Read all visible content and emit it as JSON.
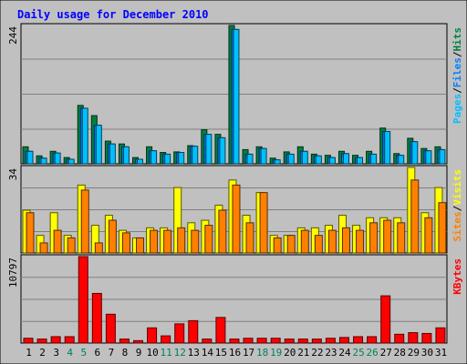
{
  "chart_data": {
    "type": "bar",
    "title": "Daily usage for December 2010",
    "categories": [
      "1",
      "2",
      "3",
      "4",
      "5",
      "6",
      "7",
      "8",
      "9",
      "10",
      "11",
      "12",
      "13",
      "14",
      "15",
      "16",
      "17",
      "18",
      "19",
      "20",
      "21",
      "22",
      "23",
      "24",
      "25",
      "26",
      "27",
      "28",
      "29",
      "30",
      "31"
    ],
    "weekend_days": [
      "4",
      "5",
      "11",
      "12",
      "18",
      "19",
      "25",
      "26"
    ],
    "panels": [
      {
        "ymax_label": "244",
        "ymax": 244,
        "right_label": [
          "Pages",
          "/",
          "Files",
          "/",
          "Hits"
        ],
        "right_label_colors": [
          "#00c0ff",
          "#000000",
          "#0080ff",
          "#000000",
          "#008040"
        ],
        "series": [
          {
            "name": "Hits",
            "color": "#008040",
            "values": [
              30,
              14,
              22,
              11,
              103,
              85,
              40,
              35,
              11,
              30,
              20,
              21,
              32,
              60,
              52,
              244,
              25,
              30,
              10,
              21,
              30,
              17,
              15,
              22,
              15,
              22,
              63,
              18,
              45,
              27,
              30
            ]
          },
          {
            "name": "Files",
            "color": "#0080ff",
            "values": [
              22,
              10,
              19,
              8,
              98,
              68,
              35,
              30,
              8,
              23,
              17,
              20,
              31,
              52,
              46,
              237,
              17,
              27,
              7,
              17,
              22,
              14,
              11,
              18,
              11,
              17,
              57,
              15,
              39,
              23,
              25
            ]
          },
          {
            "name": "Pages",
            "color": "#00c0ff",
            "values": [
              22,
              10,
              19,
              8,
              98,
              68,
              35,
              30,
              8,
              23,
              17,
              20,
              31,
              52,
              46,
              237,
              17,
              27,
              7,
              17,
              22,
              14,
              11,
              18,
              11,
              17,
              57,
              15,
              39,
              23,
              25
            ]
          }
        ]
      },
      {
        "ymax_label": "34",
        "ymax": 34,
        "right_label": [
          "Sites",
          "/",
          "Visits"
        ],
        "right_label_colors": [
          "#ff8000",
          "#000000",
          "#ffff00"
        ],
        "series": [
          {
            "name": "Visits",
            "color": "#ffff00",
            "values": [
              17,
              7,
              16,
              7,
              27,
              11,
              15,
              9,
              6,
              10,
              10,
              26,
              12,
              13,
              19,
              29,
              15,
              24,
              7,
              7,
              10,
              10,
              11,
              15,
              11,
              14,
              14,
              14,
              34,
              16,
              26
            ]
          },
          {
            "name": "Sites",
            "color": "#ff8000",
            "values": [
              16,
              4,
              9,
              6,
              25,
              4,
              13,
              8,
              6,
              9,
              9,
              10,
              9,
              11,
              17,
              27,
              12,
              24,
              6,
              7,
              9,
              7,
              9,
              10,
              9,
              12,
              13,
              12,
              29,
              14,
              20
            ]
          }
        ]
      },
      {
        "ymax_label": "10797",
        "ymax": 10797,
        "right_label": [
          "KBytes"
        ],
        "right_label_colors": [
          "#ff0000"
        ],
        "series": [
          {
            "name": "KBytes",
            "color": "#ff0000",
            "values": [
              600,
              500,
              800,
              800,
              10797,
              6200,
              3600,
              500,
              300,
              1900,
              900,
              2400,
              2800,
              500,
              3200,
              500,
              600,
              600,
              600,
              500,
              500,
              500,
              600,
              700,
              800,
              800,
              5900,
              1100,
              1300,
              1200,
              1900
            ]
          }
        ]
      }
    ]
  }
}
